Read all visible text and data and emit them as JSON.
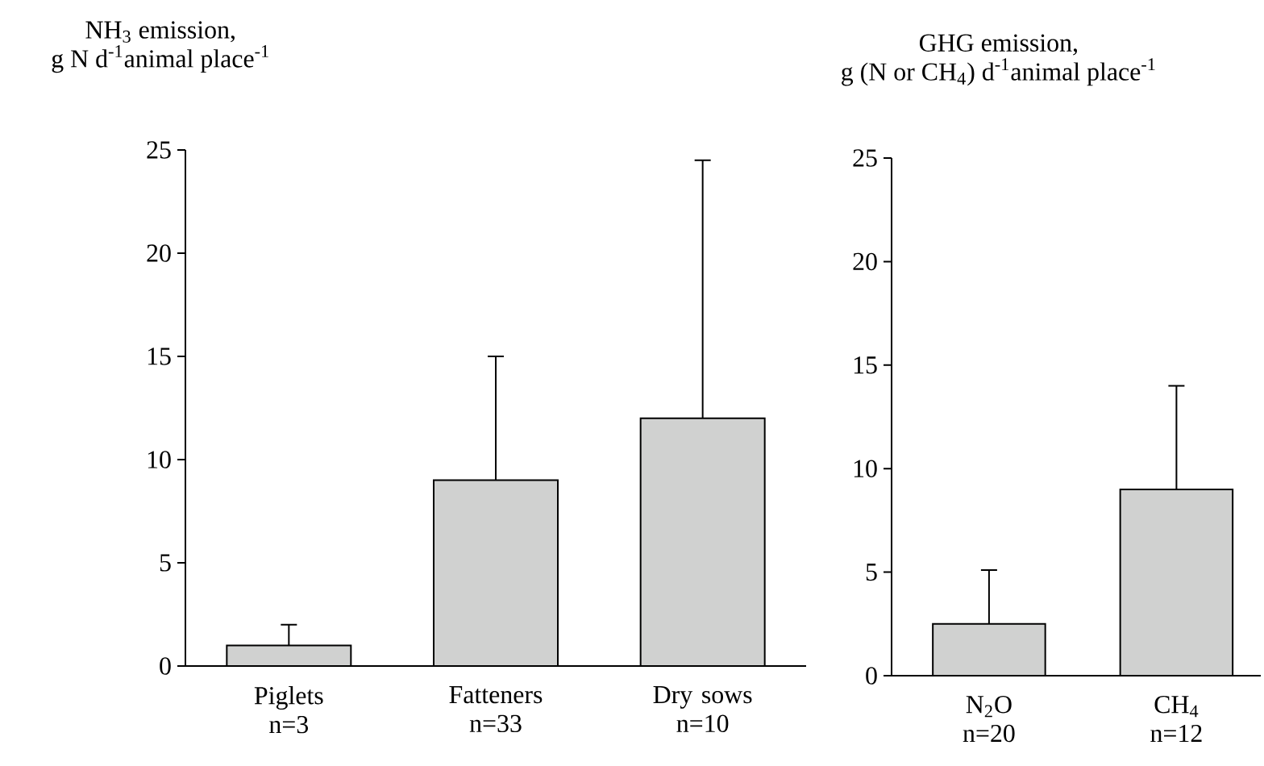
{
  "chart_data": [
    {
      "type": "bar",
      "title": "NH$_{3}$ emission,",
      "subtitle": "g N d$^{-1}$animal place$^{-1}$",
      "categories": [
        "Piglets n=3",
        "Fatteners n=33",
        "Dry sows n=10"
      ],
      "values": [
        1,
        9,
        12
      ],
      "errors": [
        [
          1,
          2
        ],
        [
          9,
          15
        ],
        [
          12,
          24.5
        ]
      ],
      "color": "#d0d1d0",
      "ylim": [
        0,
        25
      ],
      "yticks": [
        0,
        5,
        10,
        15,
        20,
        25
      ]
    },
    {
      "type": "bar",
      "title": "GHG emission,",
      "subtitle": "g (N or CH$_{4}$) d$^{-1}$animal place$^{-1}$",
      "categories": [
        "N$_{2}$O n=20",
        "CH$_{4}$ n=12"
      ],
      "values": [
        2.5,
        9
      ],
      "errors": [
        [
          2.5,
          5.1
        ],
        [
          9,
          14
        ]
      ],
      "color": "#d0d1d0",
      "ylim": [
        0,
        25
      ],
      "yticks": [
        0,
        5,
        10,
        15,
        20,
        25
      ]
    }
  ]
}
